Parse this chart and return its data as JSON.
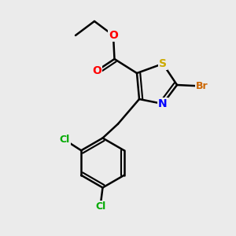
{
  "bg_color": "#ebebeb",
  "bond_color": "#000000",
  "bond_width": 1.8,
  "atom_colors": {
    "S": "#ccaa00",
    "N": "#0000ff",
    "O": "#ff0000",
    "Br": "#cc6600",
    "Cl": "#00aa00",
    "C": "#000000"
  },
  "font_size": 9,
  "fig_size": [
    3.0,
    3.0
  ],
  "dpi": 100
}
